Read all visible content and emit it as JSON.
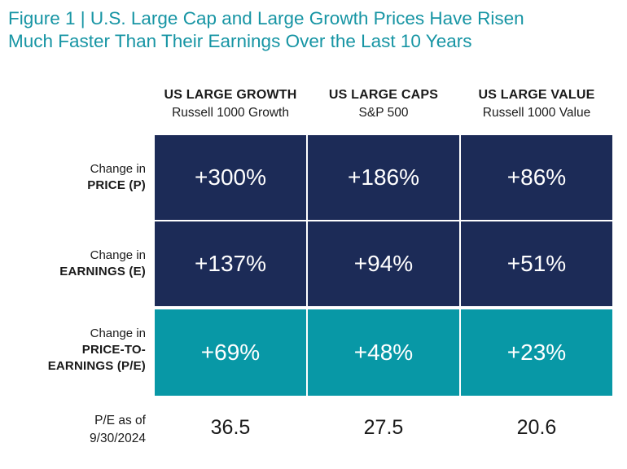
{
  "title": {
    "line1": "Figure 1 | U.S. Large Cap and Large Growth Prices Have Risen",
    "line2": "Much Faster Than Their Earnings Over the Last 10 Years"
  },
  "chart_data": {
    "type": "table",
    "columns": [
      {
        "name": "US LARGE GROWTH",
        "index": "Russell 1000 Growth"
      },
      {
        "name": "US LARGE CAPS",
        "index": "S&P 500"
      },
      {
        "name": "US LARGE VALUE",
        "index": "Russell 1000 Value"
      }
    ],
    "rows": [
      {
        "pre": "Change in",
        "label": "PRICE (P)",
        "label2": "",
        "values": [
          "+300%",
          "+186%",
          "+86%"
        ],
        "color": "#1c2b57"
      },
      {
        "pre": "Change in",
        "label": "EARNINGS (E)",
        "label2": "",
        "values": [
          "+137%",
          "+94%",
          "+51%"
        ],
        "color": "#1c2b57"
      },
      {
        "pre": "Change in",
        "label": "PRICE-TO-",
        "label2": "EARNINGS (P/E)",
        "values": [
          "+69%",
          "+48%",
          "+23%"
        ],
        "color": "#0898a6"
      }
    ],
    "pe_row": {
      "label1": "P/E as of",
      "label2": "9/30/2024",
      "values": [
        "36.5",
        "27.5",
        "20.6"
      ]
    }
  }
}
